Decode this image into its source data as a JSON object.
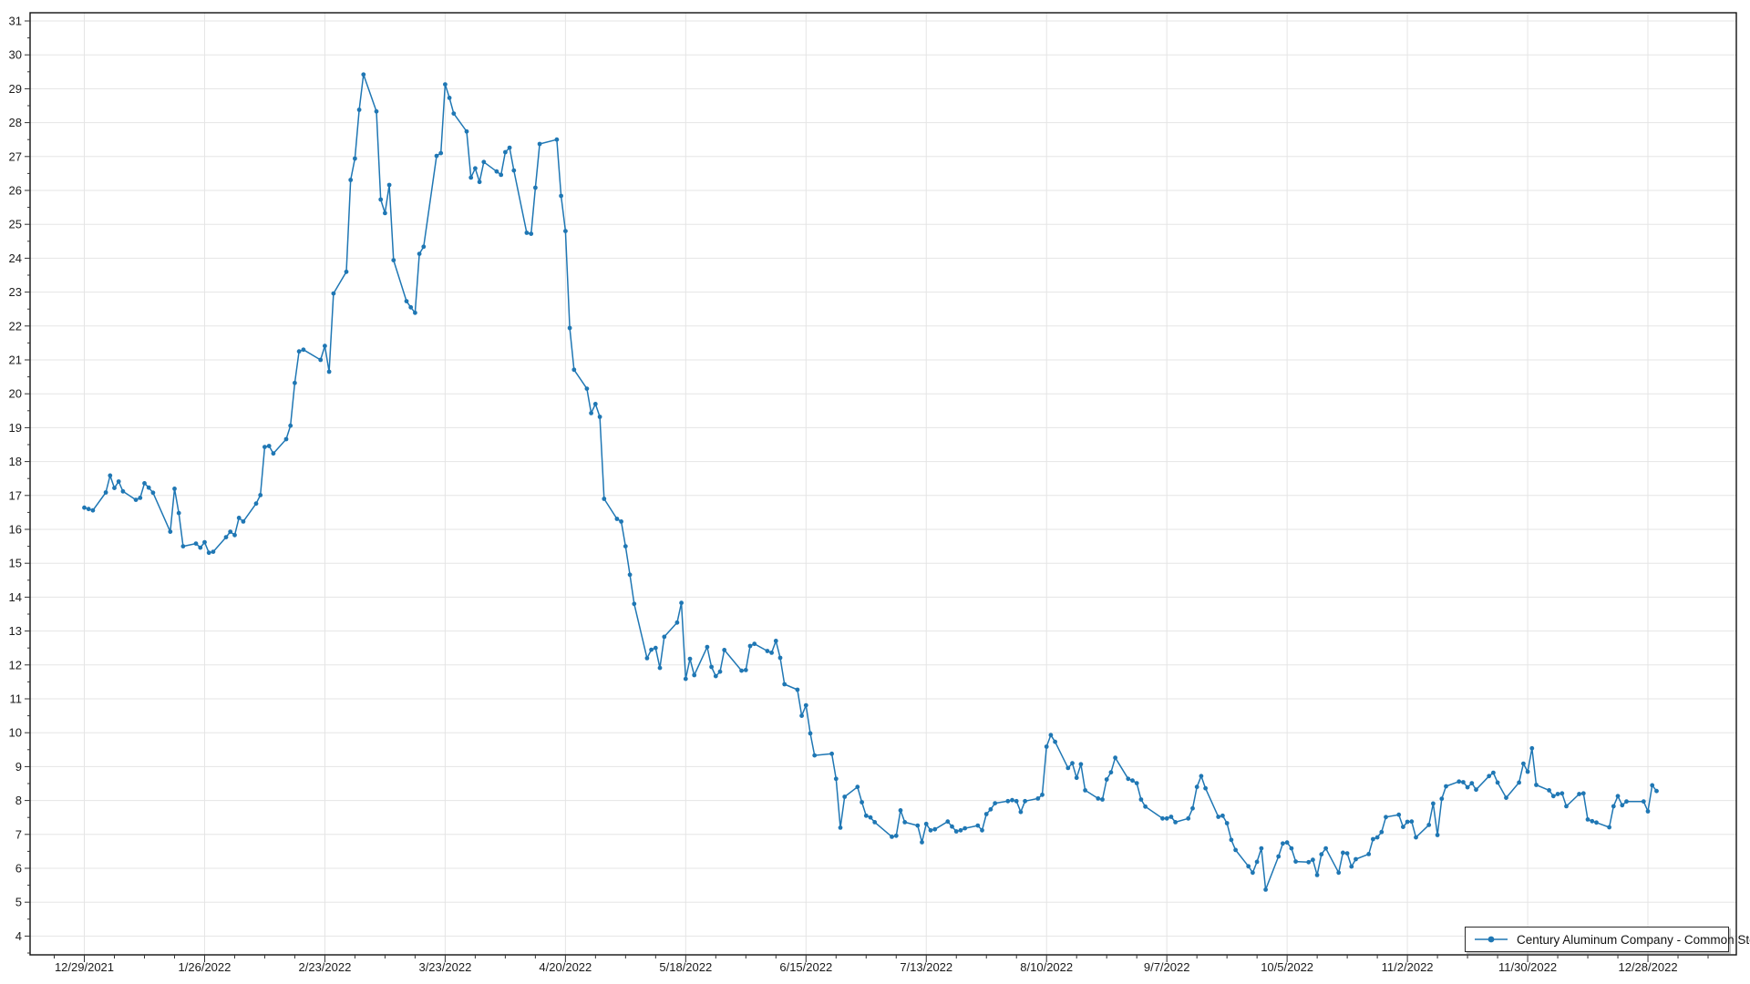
{
  "window": {
    "background": "#ffffff"
  },
  "legend": {
    "label": "Century Aluminum Company - Common Stock"
  },
  "colors": {
    "line": "#1f77b4",
    "marker": "#1f77b4",
    "grid": "#e5e5e5",
    "plot_border": "#111111",
    "tick": "#333333",
    "tick_text": "#1b1b1b",
    "legend_border": "#2b2b2b",
    "background": "#ffffff"
  },
  "chart_data": {
    "type": "line",
    "title": "",
    "xlabel": "",
    "ylabel": "",
    "grid": true,
    "legend_position": "bottom-right",
    "x_axis": {
      "kind": "date",
      "first_tick": "2021-12-29",
      "major_interval_days": 28,
      "minor_interval_days": 7,
      "tick_labels": [
        "12/29/2021",
        "1/26/2022",
        "2/23/2022",
        "3/23/2022",
        "4/20/2022",
        "5/18/2022",
        "6/15/2022",
        "7/13/2022",
        "8/10/2022",
        "9/7/2022",
        "10/5/2022",
        "11/2/2022",
        "11/30/2022",
        "12/28/2022"
      ]
    },
    "y_axis": {
      "ticks": [
        4,
        5,
        6,
        7,
        8,
        9,
        10,
        11,
        12,
        13,
        14,
        15,
        16,
        17,
        18,
        19,
        20,
        21,
        22,
        23,
        24,
        25,
        26,
        27,
        28,
        29,
        30,
        31
      ],
      "minor_step": 0.5,
      "ylim": [
        3.45,
        31.25
      ]
    },
    "series": [
      {
        "name": "Century Aluminum Company - Common Stock",
        "color": "#1f77b4",
        "marker": "circle",
        "dates": [
          "2021-12-29",
          "2021-12-30",
          "2021-12-31",
          "2022-01-03",
          "2022-01-04",
          "2022-01-05",
          "2022-01-06",
          "2022-01-07",
          "2022-01-10",
          "2022-01-11",
          "2022-01-12",
          "2022-01-13",
          "2022-01-14",
          "2022-01-18",
          "2022-01-19",
          "2022-01-20",
          "2022-01-21",
          "2022-01-24",
          "2022-01-25",
          "2022-01-26",
          "2022-01-27",
          "2022-01-28",
          "2022-01-31",
          "2022-02-01",
          "2022-02-02",
          "2022-02-03",
          "2022-02-04",
          "2022-02-07",
          "2022-02-08",
          "2022-02-09",
          "2022-02-10",
          "2022-02-11",
          "2022-02-14",
          "2022-02-15",
          "2022-02-16",
          "2022-02-17",
          "2022-02-18",
          "2022-02-22",
          "2022-02-23",
          "2022-02-24",
          "2022-02-25",
          "2022-02-28",
          "2022-03-01",
          "2022-03-02",
          "2022-03-03",
          "2022-03-04",
          "2022-03-07",
          "2022-03-08",
          "2022-03-09",
          "2022-03-10",
          "2022-03-11",
          "2022-03-14",
          "2022-03-15",
          "2022-03-16",
          "2022-03-17",
          "2022-03-18",
          "2022-03-21",
          "2022-03-22",
          "2022-03-23",
          "2022-03-24",
          "2022-03-25",
          "2022-03-28",
          "2022-03-29",
          "2022-03-30",
          "2022-03-31",
          "2022-04-01",
          "2022-04-04",
          "2022-04-05",
          "2022-04-06",
          "2022-04-07",
          "2022-04-08",
          "2022-04-11",
          "2022-04-12",
          "2022-04-13",
          "2022-04-14",
          "2022-04-18",
          "2022-04-19",
          "2022-04-20",
          "2022-04-21",
          "2022-04-22",
          "2022-04-25",
          "2022-04-26",
          "2022-04-27",
          "2022-04-28",
          "2022-04-29",
          "2022-05-02",
          "2022-05-03",
          "2022-05-04",
          "2022-05-05",
          "2022-05-06",
          "2022-05-09",
          "2022-05-10",
          "2022-05-11",
          "2022-05-12",
          "2022-05-13",
          "2022-05-16",
          "2022-05-17",
          "2022-05-18",
          "2022-05-19",
          "2022-05-20",
          "2022-05-23",
          "2022-05-24",
          "2022-05-25",
          "2022-05-26",
          "2022-05-27",
          "2022-05-31",
          "2022-06-01",
          "2022-06-02",
          "2022-06-03",
          "2022-06-06",
          "2022-06-07",
          "2022-06-08",
          "2022-06-09",
          "2022-06-10",
          "2022-06-13",
          "2022-06-14",
          "2022-06-15",
          "2022-06-16",
          "2022-06-17",
          "2022-06-21",
          "2022-06-22",
          "2022-06-23",
          "2022-06-24",
          "2022-06-27",
          "2022-06-28",
          "2022-06-29",
          "2022-06-30",
          "2022-07-01",
          "2022-07-05",
          "2022-07-06",
          "2022-07-07",
          "2022-07-08",
          "2022-07-11",
          "2022-07-12",
          "2022-07-13",
          "2022-07-14",
          "2022-07-15",
          "2022-07-18",
          "2022-07-19",
          "2022-07-20",
          "2022-07-21",
          "2022-07-22",
          "2022-07-25",
          "2022-07-26",
          "2022-07-27",
          "2022-07-28",
          "2022-07-29",
          "2022-08-01",
          "2022-08-02",
          "2022-08-03",
          "2022-08-04",
          "2022-08-05",
          "2022-08-08",
          "2022-08-09",
          "2022-08-10",
          "2022-08-11",
          "2022-08-12",
          "2022-08-15",
          "2022-08-16",
          "2022-08-17",
          "2022-08-18",
          "2022-08-19",
          "2022-08-22",
          "2022-08-23",
          "2022-08-24",
          "2022-08-25",
          "2022-08-26",
          "2022-08-29",
          "2022-08-30",
          "2022-08-31",
          "2022-09-01",
          "2022-09-02",
          "2022-09-06",
          "2022-09-07",
          "2022-09-08",
          "2022-09-09",
          "2022-09-12",
          "2022-09-13",
          "2022-09-14",
          "2022-09-15",
          "2022-09-16",
          "2022-09-19",
          "2022-09-20",
          "2022-09-21",
          "2022-09-22",
          "2022-09-23",
          "2022-09-26",
          "2022-09-27",
          "2022-09-28",
          "2022-09-29",
          "2022-09-30",
          "2022-10-03",
          "2022-10-04",
          "2022-10-05",
          "2022-10-06",
          "2022-10-07",
          "2022-10-10",
          "2022-10-11",
          "2022-10-12",
          "2022-10-13",
          "2022-10-14",
          "2022-10-17",
          "2022-10-18",
          "2022-10-19",
          "2022-10-20",
          "2022-10-21",
          "2022-10-24",
          "2022-10-25",
          "2022-10-26",
          "2022-10-27",
          "2022-10-28",
          "2022-10-31",
          "2022-11-01",
          "2022-11-02",
          "2022-11-03",
          "2022-11-04",
          "2022-11-07",
          "2022-11-08",
          "2022-11-09",
          "2022-11-10",
          "2022-11-11",
          "2022-11-14",
          "2022-11-15",
          "2022-11-16",
          "2022-11-17",
          "2022-11-18",
          "2022-11-21",
          "2022-11-22",
          "2022-11-23",
          "2022-11-25",
          "2022-11-28",
          "2022-11-29",
          "2022-11-30",
          "2022-12-01",
          "2022-12-02",
          "2022-12-05",
          "2022-12-06",
          "2022-12-07",
          "2022-12-08",
          "2022-12-09",
          "2022-12-12",
          "2022-12-13",
          "2022-12-14",
          "2022-12-15",
          "2022-12-16",
          "2022-12-19",
          "2022-12-20",
          "2022-12-21",
          "2022-12-22",
          "2022-12-23",
          "2022-12-27",
          "2022-12-28",
          "2022-12-29",
          "2022-12-30"
        ],
        "values": [
          16.64,
          16.6,
          16.56,
          17.09,
          17.59,
          17.22,
          17.41,
          17.12,
          16.87,
          16.93,
          17.36,
          17.23,
          17.08,
          15.93,
          17.2,
          16.48,
          15.5,
          15.58,
          15.46,
          15.62,
          15.31,
          15.34,
          15.77,
          15.93,
          15.83,
          16.34,
          16.23,
          16.76,
          17.01,
          18.43,
          18.46,
          18.24,
          18.66,
          19.06,
          20.32,
          21.25,
          21.3,
          21.0,
          21.41,
          20.65,
          22.96,
          23.6,
          26.31,
          26.94,
          28.38,
          29.42,
          28.33,
          25.73,
          25.33,
          26.16,
          23.94,
          22.73,
          22.55,
          22.39,
          24.13,
          24.34,
          27.02,
          27.1,
          29.13,
          28.73,
          28.27,
          27.74,
          26.38,
          26.65,
          26.25,
          26.84,
          26.56,
          26.46,
          27.13,
          27.26,
          26.59,
          24.75,
          24.72,
          26.08,
          27.37,
          27.5,
          25.84,
          24.8,
          21.94,
          20.71,
          20.15,
          19.43,
          19.7,
          19.32,
          16.9,
          16.31,
          16.23,
          15.5,
          14.66,
          13.8,
          12.2,
          12.45,
          12.5,
          11.91,
          12.83,
          13.25,
          13.83,
          11.59,
          12.18,
          11.7,
          12.53,
          11.94,
          11.67,
          11.8,
          12.44,
          11.83,
          11.85,
          12.56,
          12.62,
          12.41,
          12.36,
          12.71,
          12.21,
          11.43,
          11.27,
          10.5,
          10.81,
          9.98,
          9.33,
          9.38,
          8.64,
          7.2,
          8.11,
          8.4,
          7.95,
          7.55,
          7.5,
          7.36,
          6.93,
          6.96,
          7.71,
          7.36,
          7.26,
          6.77,
          7.31,
          7.12,
          7.15,
          7.38,
          7.23,
          7.09,
          7.12,
          7.18,
          7.26,
          7.12,
          7.6,
          7.74,
          7.92,
          7.98,
          8.01,
          7.98,
          7.66,
          7.98,
          8.06,
          8.17,
          9.59,
          9.93,
          9.73,
          8.96,
          9.1,
          8.67,
          9.07,
          8.3,
          8.06,
          8.03,
          8.62,
          8.83,
          9.26,
          8.64,
          8.59,
          8.51,
          8.03,
          7.82,
          7.47,
          7.47,
          7.52,
          7.36,
          7.47,
          7.77,
          8.4,
          8.72,
          8.36,
          7.52,
          7.55,
          7.33,
          6.84,
          6.54,
          6.06,
          5.87,
          6.19,
          6.59,
          5.37,
          6.35,
          6.73,
          6.76,
          6.59,
          6.2,
          6.18,
          6.25,
          5.8,
          6.41,
          6.59,
          5.87,
          6.46,
          6.44,
          6.05,
          6.27,
          6.42,
          6.86,
          6.91,
          7.07,
          7.51,
          7.58,
          7.22,
          7.37,
          7.38,
          6.91,
          7.28,
          7.91,
          6.98,
          8.05,
          8.42,
          8.56,
          8.54,
          8.39,
          8.51,
          8.32,
          8.72,
          8.82,
          8.53,
          8.08,
          8.53,
          9.09,
          8.85,
          9.54,
          8.46,
          8.3,
          8.13,
          8.19,
          8.21,
          7.83,
          8.19,
          8.21,
          7.44,
          7.39,
          7.35,
          7.21,
          7.83,
          8.13,
          7.86,
          7.97,
          7.97,
          7.68,
          8.45,
          8.28
        ]
      }
    ]
  }
}
